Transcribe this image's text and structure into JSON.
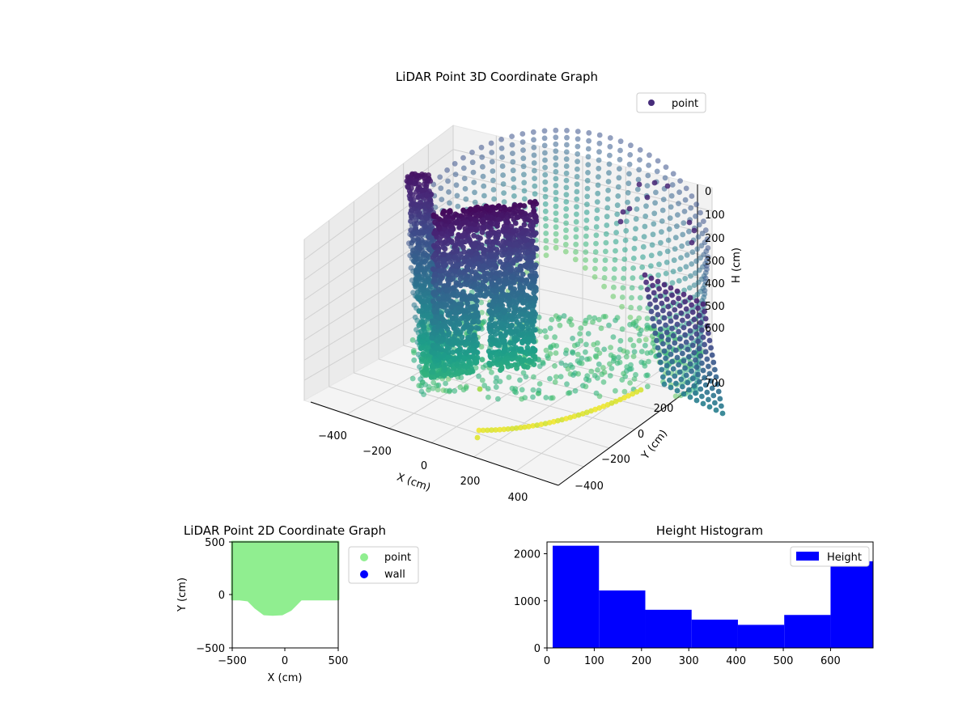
{
  "colors": {
    "point_2d": "#90ee90",
    "wall_2d": "#0000ff",
    "histogram": "#0000ff",
    "legend_point_3d": "#472d7b",
    "pane": "#f2f2f2",
    "grid": "#cccccc"
  },
  "chart_data": [
    {
      "type": "scatter3d",
      "title": "LiDAR Point 3D Coordinate Graph",
      "xlabel": "X (cm)",
      "ylabel": "Y (cm)",
      "zlabel": "H (cm)",
      "x_ticks": [
        "−400",
        "−200",
        "0",
        "200",
        "400"
      ],
      "y_ticks": [
        "−400",
        "−200",
        "0",
        "200"
      ],
      "z_ticks": [
        "0",
        "100",
        "200",
        "300",
        "400",
        "500",
        "600",
        "700"
      ],
      "legend": [
        "point"
      ],
      "legend_position": "top-right",
      "colormap": "viridis",
      "grid": true
    },
    {
      "type": "scatter",
      "title": "LiDAR Point 2D Coordinate Graph",
      "xlabel": "X (cm)",
      "ylabel": "Y (cm)",
      "xlim": [
        -500,
        500
      ],
      "ylim": [
        -500,
        500
      ],
      "x_ticks": [
        "−500",
        "0",
        "500"
      ],
      "y_ticks": [
        "500",
        "0",
        "−500"
      ],
      "legend": [
        "point",
        "wall"
      ],
      "legend_position": "outside-right",
      "point_region_boundary": [
        [
          -500,
          500
        ],
        [
          500,
          500
        ],
        [
          500,
          -40
        ],
        [
          150,
          -40
        ],
        [
          100,
          -90
        ],
        [
          50,
          -140
        ],
        [
          -30,
          -180
        ],
        [
          -120,
          -185
        ],
        [
          -200,
          -180
        ],
        [
          -280,
          -120
        ],
        [
          -350,
          -50
        ],
        [
          -430,
          -40
        ],
        [
          -500,
          -40
        ]
      ]
    },
    {
      "type": "bar",
      "title": "Height Histogram",
      "xlim": [
        0,
        690
      ],
      "ylim": [
        0,
        2250
      ],
      "x_ticks": [
        "0",
        "100",
        "200",
        "300",
        "400",
        "500",
        "600"
      ],
      "y_ticks": [
        "0",
        "1000",
        "2000"
      ],
      "legend": [
        "Height"
      ],
      "legend_position": "top-right",
      "bins": [
        {
          "start": 12,
          "end": 110,
          "count": 2170
        },
        {
          "start": 110,
          "end": 208,
          "count": 1220
        },
        {
          "start": 208,
          "end": 306,
          "count": 810
        },
        {
          "start": 306,
          "end": 404,
          "count": 600
        },
        {
          "start": 404,
          "end": 502,
          "count": 490
        },
        {
          "start": 502,
          "end": 600,
          "count": 700
        },
        {
          "start": 600,
          "end": 698,
          "count": 1840
        }
      ]
    }
  ]
}
